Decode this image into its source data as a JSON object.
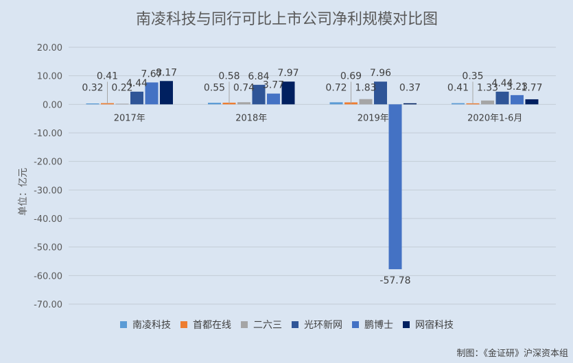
{
  "chart_data": {
    "type": "bar",
    "title": "南凌科技与同行可比上市公司净利规模对比图",
    "ylabel": "单位：亿元",
    "xlabel": "",
    "ylim": [
      -70,
      20
    ],
    "yticks": [
      "20.00",
      "10.00",
      "0.00",
      "-10.00",
      "-20.00",
      "-30.00",
      "-40.00",
      "-50.00",
      "-60.00",
      "-70.00"
    ],
    "ytick_values": [
      20,
      10,
      0,
      -10,
      -20,
      -30,
      -40,
      -50,
      -60,
      -70
    ],
    "categories": [
      "2017年",
      "2018年",
      "2019年",
      "2020年1-6月"
    ],
    "series": [
      {
        "name": "南凌科技",
        "color": "#5b9bd5",
        "values": [
          0.32,
          0.55,
          0.72,
          0.41
        ],
        "labels": [
          "0.32",
          "0.55",
          "0.72",
          "0.41"
        ]
      },
      {
        "name": "首都在线",
        "color": "#ed7d31",
        "values": [
          0.41,
          0.58,
          0.69,
          0.35
        ],
        "labels": [
          "0.41",
          "0.58",
          "0.69",
          "0.35"
        ]
      },
      {
        "name": "二六三",
        "color": "#a5a5a5",
        "values": [
          0.22,
          0.74,
          1.83,
          1.33
        ],
        "labels": [
          "0.22",
          "0.74",
          "1.83",
          "1.33"
        ]
      },
      {
        "name": "光环新网",
        "color": "#2f5597",
        "values": [
          4.44,
          6.84,
          7.96,
          4.44
        ],
        "labels": [
          "4.44",
          "6.84",
          "7.96",
          "4.44"
        ]
      },
      {
        "name": "鹏博士",
        "color": "#4472c4",
        "values": [
          7.67,
          3.77,
          -57.78,
          3.23
        ],
        "labels": [
          "7.67",
          "3.77",
          "-57.78",
          "3.23"
        ]
      },
      {
        "name": "网宿科技",
        "color": "#002060",
        "values": [
          8.17,
          7.97,
          0.37,
          1.77
        ],
        "labels": [
          "8.17",
          "7.97",
          "0.37",
          "1.77"
        ]
      }
    ],
    "grid": true,
    "legend_position": "bottom"
  },
  "footer": {
    "credit": "制图：《金证研》沪深资本组"
  }
}
